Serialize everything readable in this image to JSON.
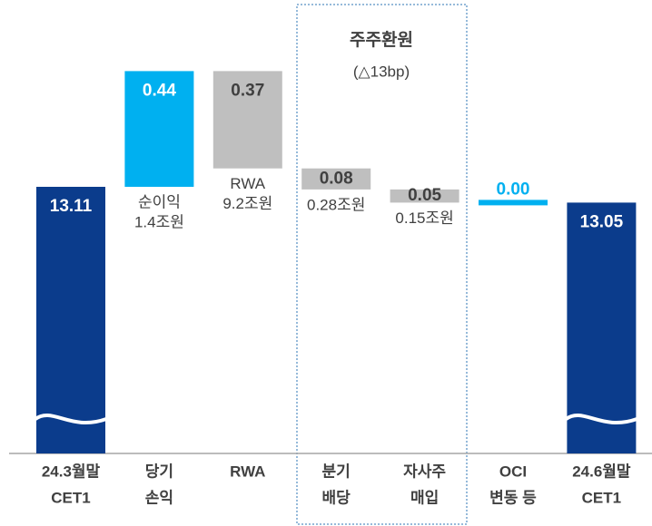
{
  "chart_data": {
    "type": "waterfall",
    "categories": [
      [
        "24.3월말",
        "CET1"
      ],
      [
        "당기",
        "손익"
      ],
      [
        "RWA"
      ],
      [
        "분기",
        "배당"
      ],
      [
        "자사주",
        "매입"
      ],
      [
        "OCI",
        "변동 등"
      ],
      [
        "24.6월말",
        "CET1"
      ]
    ],
    "values": [
      13.11,
      0.44,
      0.37,
      0.08,
      0.05,
      0.0,
      13.05
    ],
    "value_labels": [
      "13.11",
      "0.44",
      "0.37",
      "0.08",
      "0.05",
      "0.00",
      "13.05"
    ],
    "directions": [
      "total",
      "up",
      "down",
      "down",
      "down",
      "down",
      "total"
    ],
    "colors": [
      "#0b3c8c",
      "#00b0f0",
      "#bfbfbf",
      "#bfbfbf",
      "#bfbfbf",
      "#00b0f0",
      "#0b3c8c"
    ],
    "label_colors": [
      "#ffffff",
      "#ffffff",
      "#404040",
      "#404040",
      "#404040",
      "#00b0f0",
      "#ffffff"
    ],
    "notes": [
      null,
      [
        "순이익",
        "1.4조원"
      ],
      [
        "RWA",
        "9.2조원"
      ],
      [
        "0.28조원"
      ],
      [
        "0.15조원"
      ],
      null,
      null
    ],
    "group": {
      "title": "주주환원",
      "subtitle": "(△13bp)"
    }
  }
}
